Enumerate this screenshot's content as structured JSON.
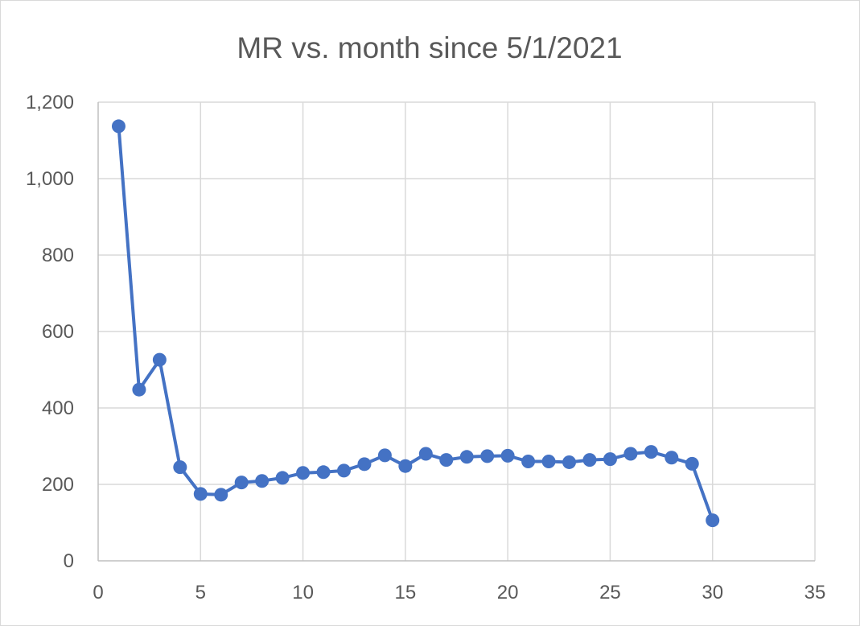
{
  "chart_data": {
    "type": "scatter",
    "mode": "lines+markers",
    "title": "MR vs. month since 5/1/2021",
    "xlabel": "",
    "ylabel": "",
    "xlim": [
      0,
      35
    ],
    "ylim": [
      0,
      1200
    ],
    "x_ticks": [
      0,
      5,
      10,
      15,
      20,
      25,
      30,
      35
    ],
    "y_ticks": [
      0,
      200,
      400,
      600,
      800,
      1000,
      1200
    ],
    "x_tick_labels": [
      "0",
      "5",
      "10",
      "15",
      "20",
      "25",
      "30",
      "35"
    ],
    "y_tick_labels": [
      "0",
      "200",
      "400",
      "600",
      "800",
      "1,000",
      "1,200"
    ],
    "grid": true,
    "legend": "none",
    "series": [
      {
        "color": "#4472c4",
        "x": [
          1,
          2,
          3,
          4,
          5,
          6,
          7,
          8,
          9,
          10,
          11,
          12,
          13,
          14,
          15,
          16,
          17,
          18,
          19,
          20,
          21,
          22,
          23,
          24,
          25,
          26,
          27,
          28,
          29,
          30
        ],
        "y": [
          1137,
          448,
          526,
          245,
          175,
          173,
          205,
          209,
          217,
          230,
          232,
          236,
          253,
          276,
          248,
          280,
          264,
          272,
          274,
          275,
          260,
          260,
          258,
          264,
          266,
          280,
          285,
          270,
          254,
          106
        ]
      }
    ]
  }
}
